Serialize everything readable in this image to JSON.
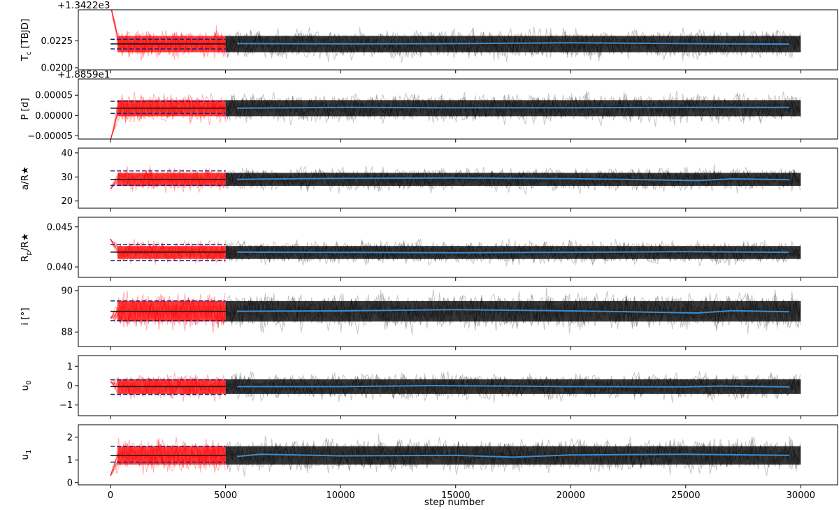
{
  "chart_data": {
    "type": "line",
    "xlabel": "step number",
    "xlim": [
      -1400,
      31600
    ],
    "xticks": [
      0,
      5000,
      10000,
      15000,
      20000,
      25000,
      30000
    ],
    "xtick_labels": [
      "0",
      "5000",
      "10000",
      "15000",
      "20000",
      "25000",
      "30000"
    ],
    "burn_in_end": 5000,
    "chain_end": 30000,
    "colors": {
      "burn_in": "#ff0000",
      "chain": "#000000",
      "running_median": "#3a8dd0",
      "reference_lines": "#1a237e"
    },
    "panels": [
      {
        "ylabel": "T_c [TBJD]",
        "offset_text": "+1.3422e3",
        "ylim": [
          0.0198,
          0.0254
        ],
        "yticks": [
          0.02,
          0.0225
        ],
        "ytick_labels": [
          "0.0200",
          "0.0225"
        ],
        "center": 0.0222,
        "noise": 0.00085,
        "burn_start": 0.0258,
        "ref_lines": [
          0.02175,
          0.02222,
          0.02265
        ],
        "median": [
          [
            5500,
            0.02225
          ],
          [
            10000,
            0.02222
          ],
          [
            15000,
            0.02225
          ],
          [
            20000,
            0.02232
          ],
          [
            25000,
            0.02225
          ],
          [
            29500,
            0.0222
          ]
        ]
      },
      {
        "ylabel": "P [d]",
        "offset_text": "+1.8859e1",
        "ylim": [
          -5.8e-05,
          9e-05
        ],
        "yticks": [
          -5e-05,
          0,
          5e-05
        ],
        "ytick_labels": [
          "−0.00005",
          "0.00000",
          "0.00005"
        ],
        "center": 1.8e-05,
        "noise": 2.2e-05,
        "burn_start": -6e-05,
        "ref_lines": [
          5e-06,
          1.8e-05,
          3.5e-05
        ],
        "median": [
          [
            5500,
            1.8e-05
          ],
          [
            10000,
            2e-05
          ],
          [
            15000,
            1.9e-05
          ],
          [
            20000,
            1.9e-05
          ],
          [
            25000,
            2e-05
          ],
          [
            29500,
            2e-05
          ]
        ]
      },
      {
        "ylabel": "a/R★",
        "ylim": [
          17,
          42
        ],
        "yticks": [
          20,
          30,
          40
        ],
        "ytick_labels": [
          "20",
          "30",
          "40"
        ],
        "center": 29,
        "noise": 3,
        "burn_start": 25,
        "ref_lines": [
          26.5,
          29,
          32.5
        ],
        "median": [
          [
            5500,
            29
          ],
          [
            10000,
            29.4
          ],
          [
            15000,
            29.6
          ],
          [
            20000,
            29.3
          ],
          [
            23000,
            28.9
          ],
          [
            25500,
            28.5
          ],
          [
            27000,
            29.2
          ],
          [
            29500,
            28.9
          ]
        ]
      },
      {
        "ylabel": "R_p/R★",
        "ylim": [
          0.0387,
          0.0462
        ],
        "yticks": [
          0.04,
          0.045
        ],
        "ytick_labels": [
          "0.040",
          "0.045"
        ],
        "center": 0.0418,
        "noise": 0.0009,
        "burn_start": 0.0435,
        "ref_lines": [
          0.0408,
          0.04185,
          0.0428
        ],
        "median": [
          [
            5500,
            0.04185
          ],
          [
            10000,
            0.04182
          ],
          [
            15000,
            0.04178
          ],
          [
            20000,
            0.04183
          ],
          [
            25000,
            0.0419
          ],
          [
            29500,
            0.04183
          ]
        ]
      },
      {
        "ylabel": "i [°]",
        "ylim": [
          87.3,
          90.2
        ],
        "yticks": [
          88,
          90
        ],
        "ytick_labels": [
          "88",
          "90"
        ],
        "center": 89,
        "noise": 0.55,
        "burn_start": 88.7,
        "ref_lines": [
          88.55,
          89.0,
          89.5
        ],
        "median": [
          [
            5500,
            89.0
          ],
          [
            10000,
            89.02
          ],
          [
            15000,
            89.08
          ],
          [
            20000,
            89.02
          ],
          [
            22500,
            88.98
          ],
          [
            25500,
            88.92
          ],
          [
            27000,
            89.03
          ],
          [
            29500,
            88.98
          ]
        ]
      },
      {
        "ylabel": "u_0",
        "ylim": [
          -1.55,
          1.55
        ],
        "yticks": [
          -1,
          0,
          1
        ],
        "ytick_labels": [
          "−1",
          "0",
          "1"
        ],
        "center": -0.05,
        "noise": 0.42,
        "burn_start": 0.2,
        "ref_lines": [
          -0.45,
          -0.05,
          0.3
        ],
        "median": [
          [
            5500,
            -0.05
          ],
          [
            10000,
            -0.05
          ],
          [
            14000,
            0.0
          ],
          [
            17500,
            -0.02
          ],
          [
            20000,
            -0.05
          ],
          [
            25000,
            -0.06
          ],
          [
            26500,
            -0.02
          ],
          [
            29500,
            -0.06
          ]
        ]
      },
      {
        "ylabel": "u_1",
        "ylim": [
          -0.1,
          2.55
        ],
        "yticks": [
          0,
          1,
          2
        ],
        "ytick_labels": [
          "0",
          "1",
          "2"
        ],
        "center": 1.2,
        "noise": 0.45,
        "burn_start": 0.3,
        "ref_lines": [
          0.9,
          1.2,
          1.6
        ],
        "median": [
          [
            5500,
            1.15
          ],
          [
            6500,
            1.25
          ],
          [
            10000,
            1.18
          ],
          [
            15000,
            1.2
          ],
          [
            17500,
            1.12
          ],
          [
            20000,
            1.22
          ],
          [
            25000,
            1.25
          ],
          [
            29500,
            1.2
          ]
        ]
      }
    ]
  }
}
